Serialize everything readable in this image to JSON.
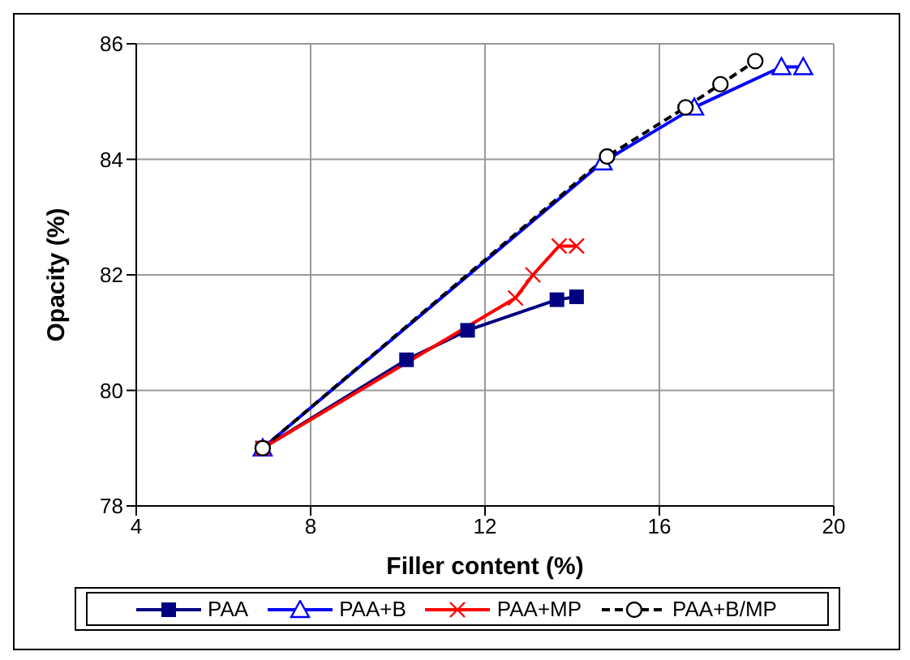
{
  "chart_data": {
    "type": "line",
    "xlabel": "Filler content (%)",
    "ylabel": "Opacity (%)",
    "xlim": [
      4,
      20
    ],
    "xticks": [
      4,
      8,
      12,
      16,
      20
    ],
    "ylim": [
      78,
      86
    ],
    "yticks": [
      78,
      80,
      82,
      84,
      86
    ],
    "grid": true,
    "legend": "bottom",
    "series": [
      {
        "name": "PAA",
        "color": "#000080",
        "marker": "square",
        "line_style": "solid",
        "x": [
          6.9,
          10.2,
          11.6,
          13.65,
          14.1
        ],
        "values": [
          79.0,
          80.53,
          81.04,
          81.57,
          81.62
        ]
      },
      {
        "name": "PAA+B",
        "color": "#0000ff",
        "marker": "triangle",
        "line_style": "solid",
        "x": [
          6.9,
          14.7,
          16.8,
          18.8,
          19.3
        ],
        "values": [
          79.0,
          83.95,
          84.9,
          85.6,
          85.6
        ]
      },
      {
        "name": "PAA+MP",
        "color": "#ff0000",
        "marker": "cross",
        "line_style": "solid",
        "x": [
          6.9,
          12.7,
          13.1,
          13.7,
          14.1
        ],
        "values": [
          79.0,
          81.6,
          82.0,
          82.5,
          82.5
        ]
      },
      {
        "name": "PAA+B/MP",
        "color": "#000000",
        "marker": "circle",
        "line_style": "dashed",
        "x": [
          6.9,
          14.8,
          16.6,
          17.4,
          18.2
        ],
        "values": [
          79.0,
          84.05,
          84.9,
          85.3,
          85.7
        ]
      }
    ]
  }
}
